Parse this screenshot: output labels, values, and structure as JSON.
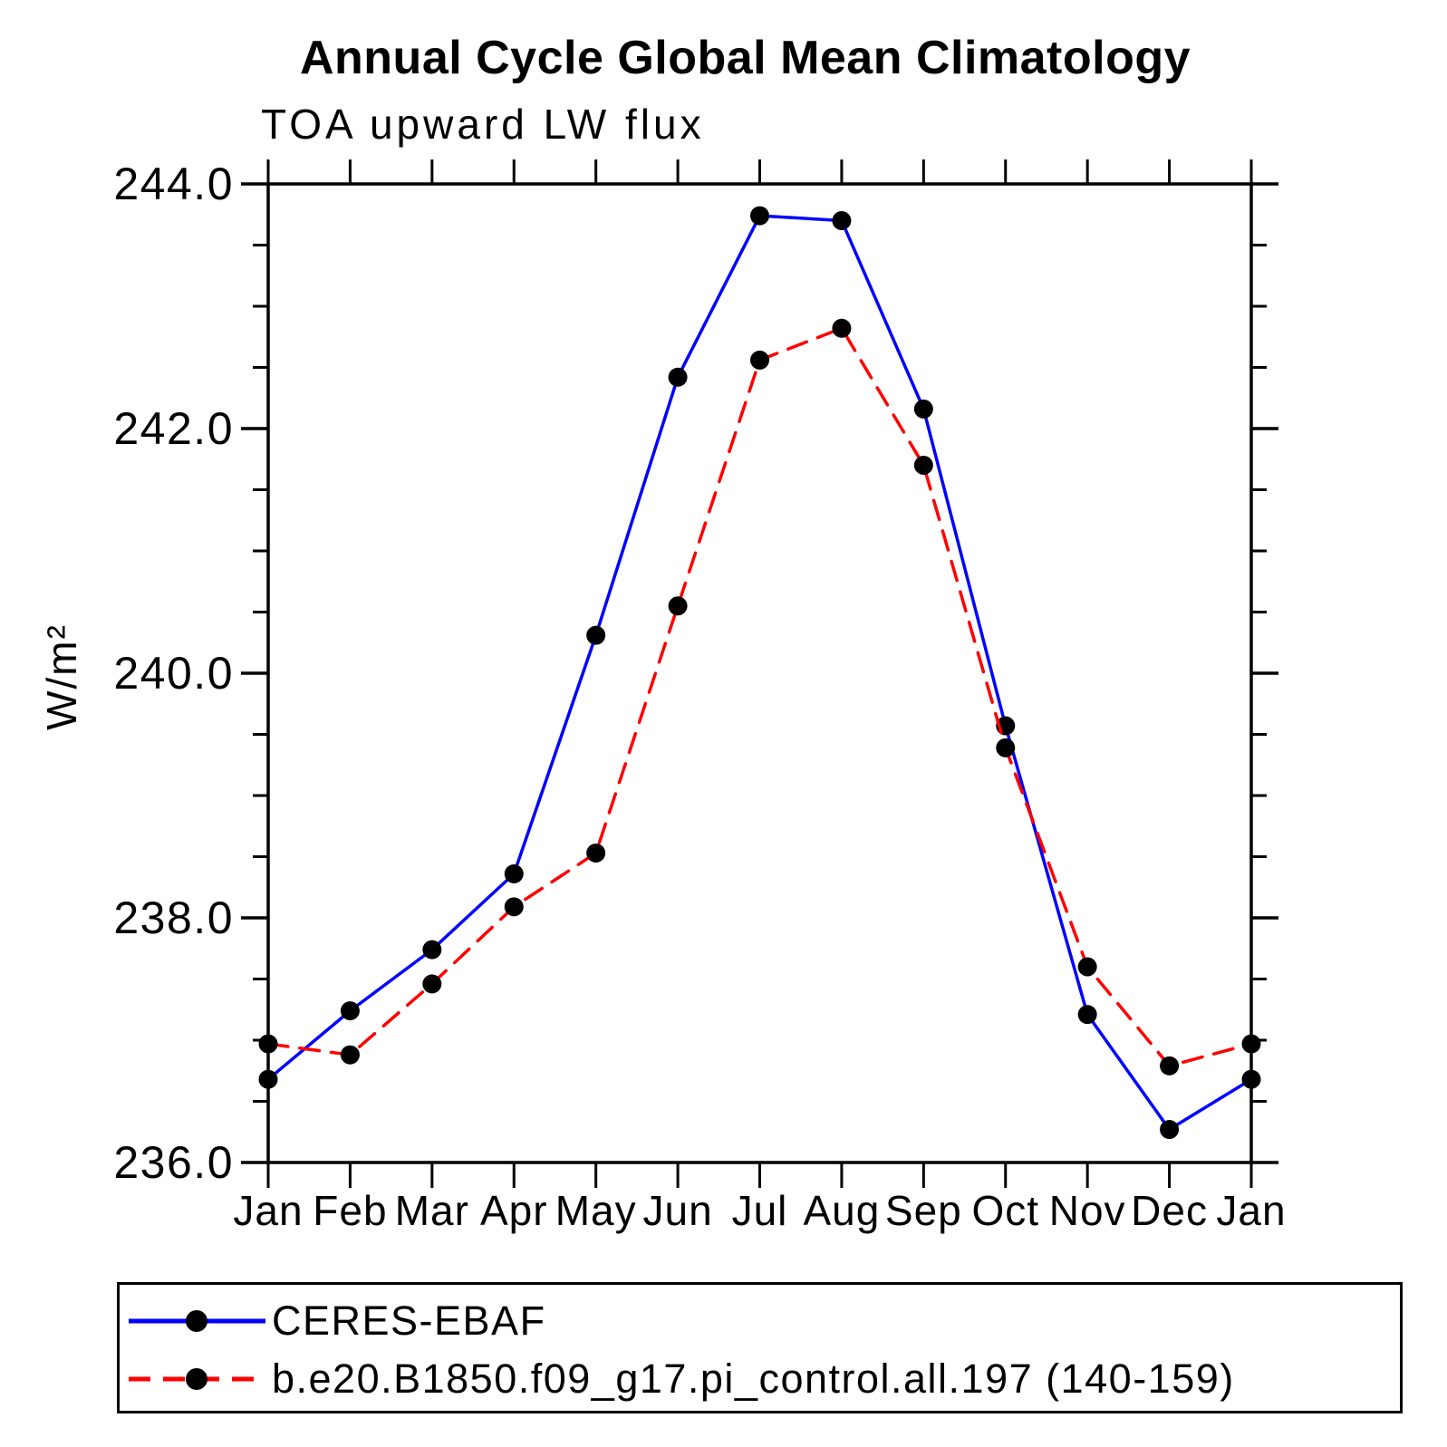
{
  "title": "Annual Cycle Global Mean Climatology",
  "subtitle": "TOA upward LW flux",
  "chart_data": {
    "type": "line",
    "title": "Annual Cycle Global Mean Climatology",
    "subtitle": "TOA upward LW flux",
    "xlabel": "",
    "ylabel": "W/m²",
    "categories": [
      "Jan",
      "Feb",
      "Mar",
      "Apr",
      "May",
      "Jun",
      "Jul",
      "Aug",
      "Sep",
      "Oct",
      "Nov",
      "Dec",
      "Jan"
    ],
    "series": [
      {
        "name": "CERES-EBAF",
        "color": "#0000ff",
        "line_style": "solid",
        "marker": "filled-circle",
        "marker_color": "#000000",
        "values": [
          236.68,
          237.24,
          237.74,
          238.36,
          240.31,
          242.42,
          243.74,
          243.7,
          242.16,
          239.57,
          237.21,
          236.27,
          236.68
        ]
      },
      {
        "name": "b.e20.B1850.f09_g17.pi_control.all.197 (140-159)",
        "color": "#ff0000",
        "line_style": "dashed",
        "marker": "filled-circle",
        "marker_color": "#000000",
        "values": [
          236.97,
          236.88,
          237.46,
          238.09,
          238.53,
          240.55,
          242.56,
          242.82,
          241.7,
          239.39,
          237.6,
          236.79,
          236.97
        ]
      }
    ],
    "ylim": [
      236.0,
      244.0
    ],
    "ytick_major": [
      236.0,
      238.0,
      240.0,
      242.0,
      244.0
    ],
    "ytick_labels": [
      "236.0",
      "238.0",
      "240.0",
      "242.0",
      "244.0"
    ],
    "ytick_minor_step": 0.5,
    "grid": false,
    "legend_position": "bottom-left-box"
  },
  "legend": {
    "entries": [
      {
        "label": "CERES-EBAF"
      },
      {
        "label": "b.e20.B1850.f09_g17.pi_control.all.197 (140-159)"
      }
    ]
  }
}
